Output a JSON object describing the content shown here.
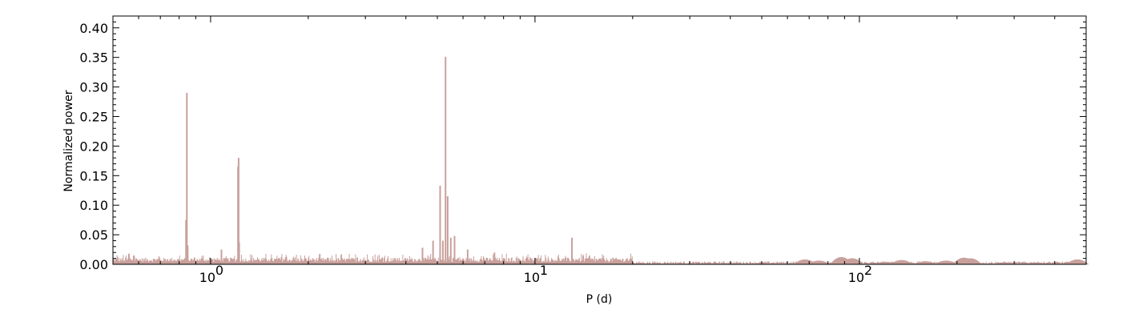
{
  "chart_data": {
    "type": "line",
    "xlabel": "P (d)",
    "ylabel": "Normalized power",
    "x_scale": "log",
    "xlim": [
      0.5,
      500
    ],
    "ylim": [
      0,
      0.42
    ],
    "x_ticks": [
      {
        "value": 1,
        "base": "10",
        "exp": "0"
      },
      {
        "value": 10,
        "base": "10",
        "exp": "1"
      },
      {
        "value": 100,
        "base": "10",
        "exp": "2"
      }
    ],
    "y_ticks": [
      {
        "value": 0.0,
        "label": "0.00"
      },
      {
        "value": 0.05,
        "label": "0.05"
      },
      {
        "value": 0.1,
        "label": "0.10"
      },
      {
        "value": 0.15,
        "label": "0.15"
      },
      {
        "value": 0.2,
        "label": "0.20"
      },
      {
        "value": 0.25,
        "label": "0.25"
      },
      {
        "value": 0.3,
        "label": "0.30"
      },
      {
        "value": 0.35,
        "label": "0.35"
      },
      {
        "value": 0.4,
        "label": "0.40"
      }
    ],
    "grid": false,
    "series_color": "#c9a09c",
    "peaks": [
      {
        "x": 0.845,
        "y": 0.29
      },
      {
        "x": 0.84,
        "y": 0.075
      },
      {
        "x": 0.85,
        "y": 0.032
      },
      {
        "x": 1.22,
        "y": 0.18
      },
      {
        "x": 1.215,
        "y": 0.165
      },
      {
        "x": 1.225,
        "y": 0.037
      },
      {
        "x": 1.08,
        "y": 0.025
      },
      {
        "x": 4.85,
        "y": 0.04
      },
      {
        "x": 5.1,
        "y": 0.133
      },
      {
        "x": 5.3,
        "y": 0.351
      },
      {
        "x": 5.38,
        "y": 0.115
      },
      {
        "x": 5.2,
        "y": 0.04
      },
      {
        "x": 5.5,
        "y": 0.045
      },
      {
        "x": 5.65,
        "y": 0.048
      },
      {
        "x": 13.0,
        "y": 0.045
      },
      {
        "x": 0.56,
        "y": 0.018
      },
      {
        "x": 0.58,
        "y": 0.015
      },
      {
        "x": 4.5,
        "y": 0.028
      },
      {
        "x": 6.2,
        "y": 0.025
      },
      {
        "x": 7.5,
        "y": 0.02
      }
    ]
  }
}
